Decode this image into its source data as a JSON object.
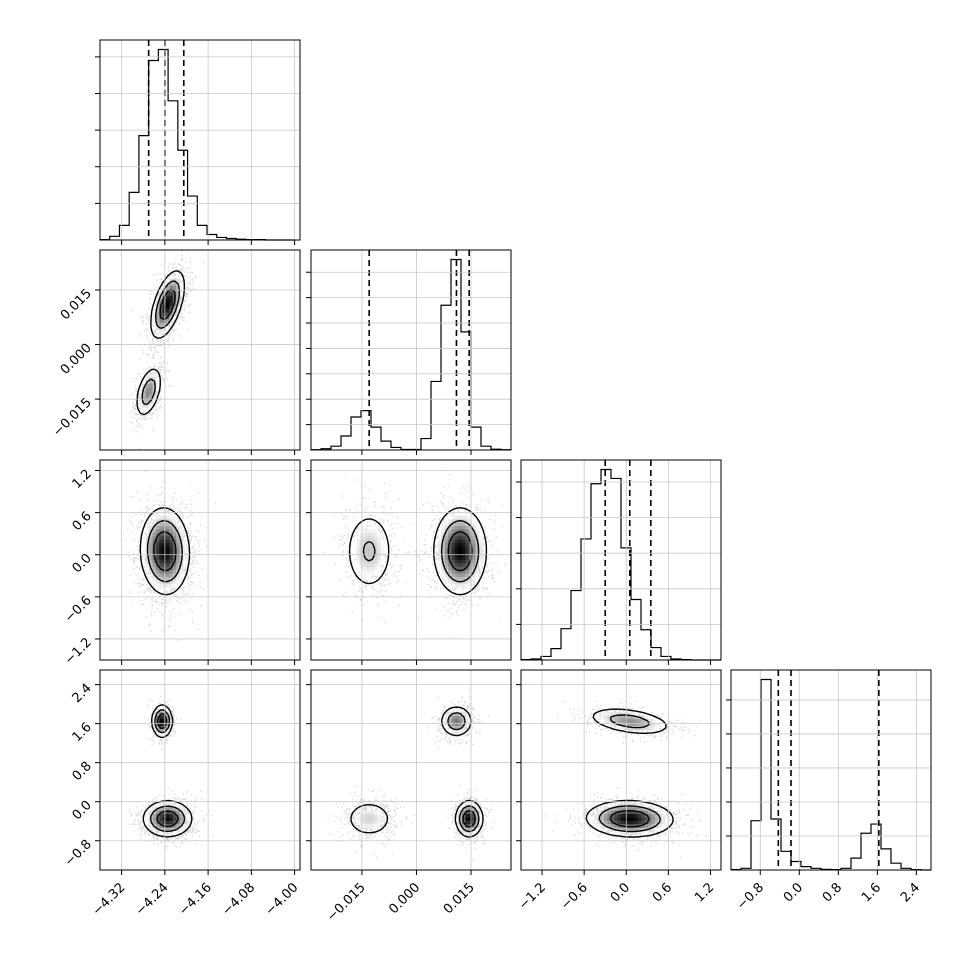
{
  "chart_data": {
    "type": "corner",
    "parameters": [
      {
        "range": [
          -4.36,
          -3.99
        ],
        "ticks": [
          -4.32,
          -4.24,
          -4.16,
          -4.08,
          -4.0
        ],
        "tick_labels": [
          "−4.32",
          "−4.24",
          "−4.16",
          "−4.08",
          "−4.00"
        ]
      },
      {
        "range": [
          -0.029,
          0.026
        ],
        "ticks": [
          -0.015,
          0.0,
          0.015
        ],
        "tick_labels": [
          "−0.015",
          "0.000",
          "0.015"
        ]
      },
      {
        "range": [
          -1.5,
          1.35
        ],
        "ticks": [
          -1.2,
          -0.6,
          0.0,
          0.6,
          1.2
        ],
        "tick_labels": [
          "−1.2",
          "−0.6",
          "0.0",
          "0.6",
          "1.2"
        ]
      },
      {
        "range": [
          -1.4,
          2.7
        ],
        "ticks": [
          -0.8,
          0.0,
          0.8,
          1.6,
          2.4
        ],
        "tick_labels": [
          "−0.8",
          "0.0",
          "0.8",
          "1.6",
          "2.4"
        ]
      }
    ],
    "histograms": [
      {
        "bins": [
          -4.36,
          -4.0
        ],
        "counts": [
          1,
          10,
          40,
          130,
          285,
          490,
          520,
          380,
          245,
          120,
          40,
          15,
          7,
          4,
          2,
          1,
          1,
          0,
          0,
          0
        ],
        "quantiles": [
          -4.27,
          -4.24,
          -4.205
        ]
      },
      {
        "bins": [
          -0.029,
          0.026
        ],
        "counts": [
          1,
          5,
          15,
          55,
          130,
          155,
          90,
          35,
          10,
          2,
          2,
          45,
          270,
          570,
          750,
          465,
          90,
          15,
          3,
          1
        ],
        "quantiles": [
          -0.013,
          0.011,
          0.0145
        ]
      },
      {
        "bins": [
          -1.5,
          1.35
        ],
        "counts": [
          1,
          3,
          10,
          32,
          88,
          195,
          340,
          495,
          535,
          510,
          315,
          170,
          85,
          35,
          10,
          3,
          1,
          0,
          0,
          0
        ],
        "quantiles": [
          -0.3,
          0.05,
          0.35
        ]
      },
      {
        "bins": [
          -1.4,
          2.7
        ],
        "counts": [
          1,
          5,
          145,
          560,
          150,
          55,
          25,
          10,
          5,
          2,
          1,
          5,
          35,
          108,
          135,
          62,
          20,
          5,
          1,
          0
        ],
        "quantiles": [
          -0.43,
          -0.17,
          1.63
        ]
      }
    ],
    "pairs": [
      {
        "x": 0,
        "y": 1,
        "modes": [
          {
            "mx": -4.235,
            "my": 0.011,
            "sx": 0.015,
            "sy": 0.0045,
            "rho": 0.55,
            "w": 0.72
          },
          {
            "mx": -4.27,
            "my": -0.013,
            "sx": 0.012,
            "sy": 0.0035,
            "rho": 0.45,
            "w": 0.28
          }
        ]
      },
      {
        "x": 0,
        "y": 2,
        "modes": [
          {
            "mx": -4.24,
            "my": 0.05,
            "sx": 0.022,
            "sy": 0.3,
            "rho": -0.05,
            "w": 1.0
          }
        ]
      },
      {
        "x": 1,
        "y": 2,
        "modes": [
          {
            "mx": 0.012,
            "my": 0.05,
            "sx": 0.0035,
            "sy": 0.3,
            "rho": 0.0,
            "w": 0.72
          },
          {
            "mx": -0.013,
            "my": 0.05,
            "sx": 0.0035,
            "sy": 0.3,
            "rho": 0.0,
            "w": 0.28
          }
        ]
      },
      {
        "x": 0,
        "y": 3,
        "modes": [
          {
            "mx": -4.235,
            "my": -0.35,
            "sx": 0.022,
            "sy": 0.18,
            "rho": 0.0,
            "w": 0.72
          },
          {
            "mx": -4.245,
            "my": 1.65,
            "sx": 0.009,
            "sy": 0.16,
            "rho": 0.0,
            "w": 0.28
          }
        ]
      },
      {
        "x": 1,
        "y": 3,
        "modes": [
          {
            "mx": 0.0145,
            "my": -0.35,
            "sx": 0.0018,
            "sy": 0.18,
            "rho": 0.0,
            "w": 0.42
          },
          {
            "mx": -0.013,
            "my": -0.35,
            "sx": 0.0035,
            "sy": 0.2,
            "rho": 0.0,
            "w": 0.3
          },
          {
            "mx": 0.011,
            "my": 1.65,
            "sx": 0.0022,
            "sy": 0.16,
            "rho": 0.0,
            "w": 0.28
          }
        ]
      },
      {
        "x": 2,
        "y": 3,
        "modes": [
          {
            "mx": 0.05,
            "my": -0.35,
            "sx": 0.3,
            "sy": 0.18,
            "rho": -0.05,
            "w": 0.72
          },
          {
            "mx": 0.05,
            "my": 1.65,
            "sx": 0.3,
            "sy": 0.14,
            "rho": -0.4,
            "w": 0.28
          }
        ]
      }
    ]
  }
}
